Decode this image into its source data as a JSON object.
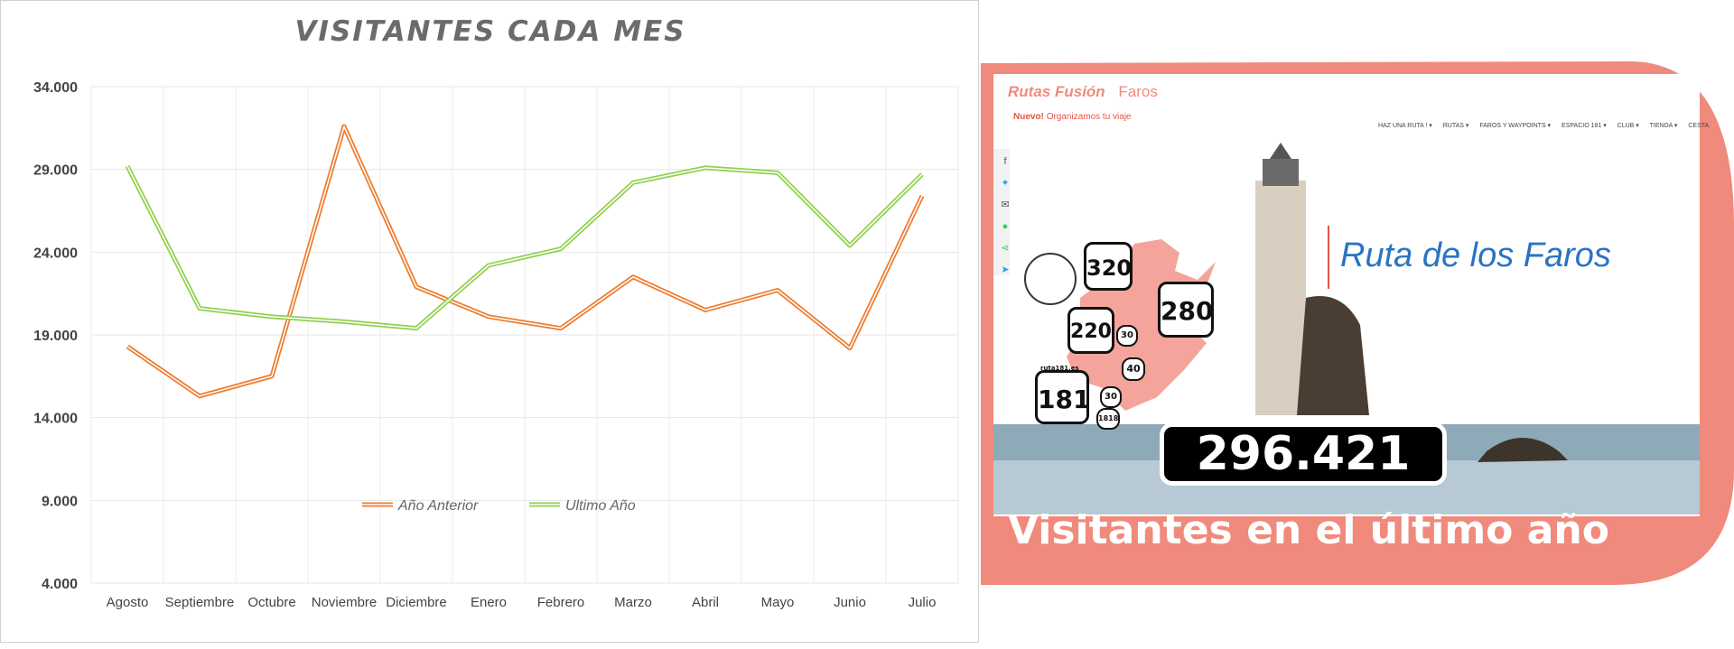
{
  "chart_data": {
    "type": "line",
    "title": "VISITANTES CADA MES",
    "categories": [
      "Agosto",
      "Septiembre",
      "Octubre",
      "Noviembre",
      "Diciembre",
      "Enero",
      "Febrero",
      "Marzo",
      "Abril",
      "Mayo",
      "Junio",
      "Julio"
    ],
    "y_ticks": [
      "4.000",
      "9.000",
      "14.000",
      "19.000",
      "24.000",
      "29.000",
      "34.000"
    ],
    "ylim": [
      4000,
      34000
    ],
    "grid": true,
    "legend_position": "bottom-center",
    "series": [
      {
        "name": "Año Anterior",
        "color": "#ED7D31",
        "values": [
          18300,
          15300,
          16500,
          31600,
          21900,
          20100,
          19400,
          22500,
          20500,
          21700,
          18200,
          27400
        ]
      },
      {
        "name": "Ultimo Año",
        "color": "#92D050",
        "values": [
          29200,
          20600,
          20100,
          19800,
          19400,
          23200,
          24200,
          28200,
          29100,
          28800,
          24400,
          28700
        ]
      }
    ]
  },
  "promo": {
    "site_logo": "Rutas",
    "site_logo_2": "Fusión",
    "site_section": "Faros",
    "tagline_bold": "Nuevo!",
    "tagline": "Organizamos tu viaje",
    "nav_items": [
      "HAZ UNA RUTA ! ▾",
      "RUTAS ▾",
      "FAROS Y WAYPOINTS ▾",
      "ESPACIO 181 ▾",
      "CLUB ▾",
      "TIENDA ▾",
      "CESTA"
    ],
    "route_title": "Ruta de los Faros",
    "badges": [
      "320",
      "220",
      "280",
      "181",
      "30",
      "40",
      "30",
      "1818"
    ],
    "badge_label": "ruta181.es",
    "stat_value": "296.421",
    "stat_caption": "Visitantes en el último año",
    "colors": {
      "accent": "#F08A7C",
      "stat_bg": "#000000",
      "title_blue": "#2A73C4"
    }
  }
}
